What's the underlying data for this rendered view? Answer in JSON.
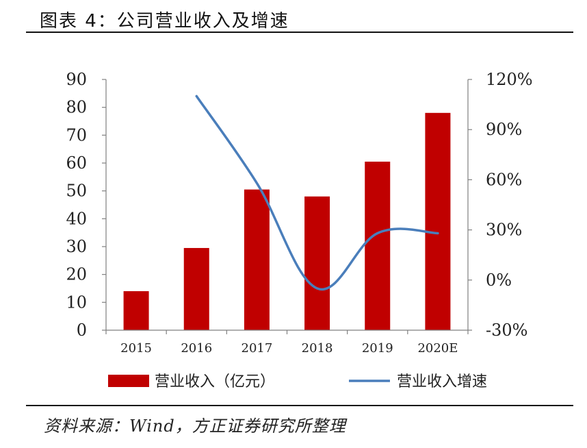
{
  "title": "图表 4：公司营业收入及增速",
  "source": "资料来源：Wind，方正证券研究所整理",
  "colors": {
    "bar": "#c00000",
    "line": "#4a7ebb",
    "axis": "#7f7f7f"
  },
  "chart_data": {
    "type": "bar",
    "title": "图表 4：公司营业收入及增速",
    "categories": [
      "2015",
      "2016",
      "2017",
      "2018",
      "2019",
      "2020E"
    ],
    "series": [
      {
        "name": "营业收入（亿元）",
        "type": "bar",
        "axis": "left",
        "values": [
          14,
          29.5,
          50.5,
          48,
          60.5,
          78
        ]
      },
      {
        "name": "营业收入增速",
        "type": "line",
        "axis": "right",
        "values": [
          null,
          110,
          58,
          -5,
          28,
          28
        ]
      }
    ],
    "y_left": {
      "ylim": [
        0,
        90
      ],
      "ticks": [
        "0",
        "10",
        "20",
        "30",
        "40",
        "50",
        "60",
        "70",
        "80",
        "90"
      ]
    },
    "y_right": {
      "ylim": [
        -30,
        120
      ],
      "ticks": [
        "-30%",
        "0%",
        "30%",
        "60%",
        "90%",
        "120%"
      ]
    },
    "legend": [
      "营业收入（亿元）",
      "营业收入增速"
    ],
    "legend_position": "bottom"
  }
}
